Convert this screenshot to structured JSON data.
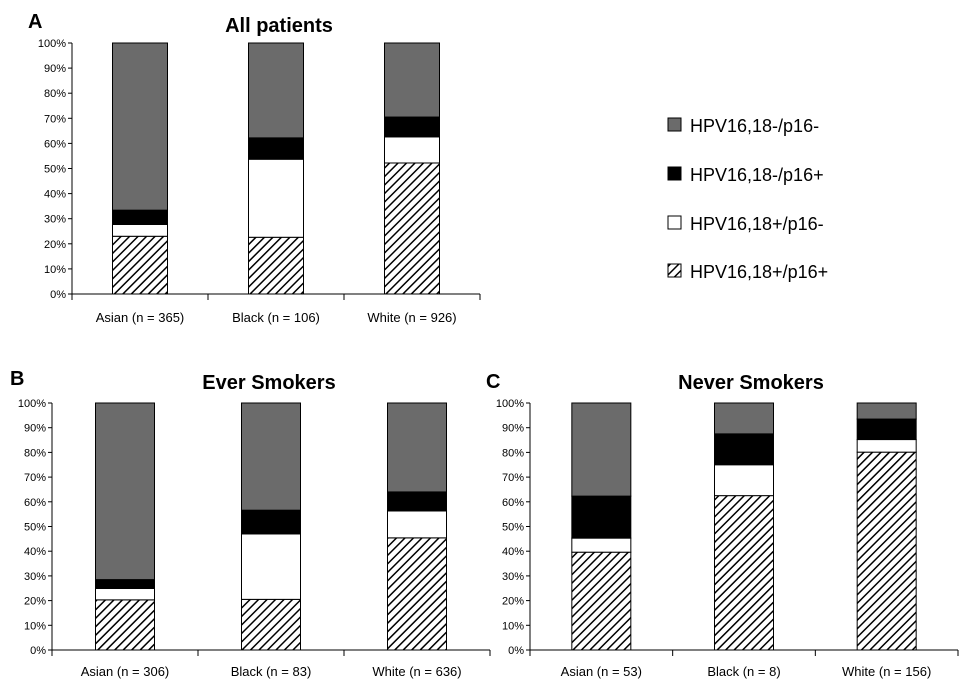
{
  "colors": {
    "neg_neg": "#6b6b6b",
    "neg_pos": "#000000",
    "pos_neg": "#ffffff",
    "pos_pos": "hatch"
  },
  "legend": {
    "items": [
      {
        "key": "neg_neg",
        "label": "HPV16,18-/p16-"
      },
      {
        "key": "neg_pos",
        "label": "HPV16,18-/p16+"
      },
      {
        "key": "pos_neg",
        "label": "HPV16,18+/p16-"
      },
      {
        "key": "pos_pos",
        "label": "HPV16,18+/p16+"
      }
    ]
  },
  "chart_data": [
    {
      "panel": "A",
      "type": "bar",
      "stacked": true,
      "title": "All patients",
      "yticks": [
        "0%",
        "10%",
        "20%",
        "30%",
        "40%",
        "50%",
        "60%",
        "70%",
        "80%",
        "90%",
        "100%"
      ],
      "ylim": [
        0,
        100
      ],
      "categories": [
        "Asian (n = 365)",
        "Black (n = 106)",
        "White (n = 926)"
      ],
      "series": [
        {
          "key": "pos_pos",
          "name": "HPV16,18+/p16+",
          "values": [
            23,
            22.6,
            52.2
          ]
        },
        {
          "key": "pos_neg",
          "name": "HPV16,18+/p16-",
          "values": [
            4.7,
            31.1,
            10.4
          ]
        },
        {
          "key": "neg_pos",
          "name": "HPV16,18-/p16+",
          "values": [
            5.7,
            8.5,
            7.9
          ]
        },
        {
          "key": "neg_neg",
          "name": "HPV16,18-/p16-",
          "values": [
            66.6,
            37.8,
            29.5
          ]
        }
      ]
    },
    {
      "panel": "B",
      "type": "bar",
      "stacked": true,
      "title": "Ever Smokers",
      "yticks": [
        "0%",
        "10%",
        "20%",
        "30%",
        "40%",
        "50%",
        "60%",
        "70%",
        "80%",
        "90%",
        "100%"
      ],
      "ylim": [
        0,
        100
      ],
      "categories": [
        "Asian (n = 306)",
        "Black (n = 83)",
        "White (n = 636)"
      ],
      "series": [
        {
          "key": "pos_pos",
          "name": "HPV16,18+/p16+",
          "values": [
            20.3,
            20.5,
            45.4
          ]
        },
        {
          "key": "pos_neg",
          "name": "HPV16,18+/p16-",
          "values": [
            4.6,
            26.5,
            10.9
          ]
        },
        {
          "key": "neg_pos",
          "name": "HPV16,18-/p16+",
          "values": [
            3.6,
            9.6,
            7.7
          ]
        },
        {
          "key": "neg_neg",
          "name": "HPV16,18-/p16-",
          "values": [
            71.5,
            43.4,
            36.0
          ]
        }
      ]
    },
    {
      "panel": "C",
      "type": "bar",
      "stacked": true,
      "title": "Never Smokers",
      "yticks": [
        "0%",
        "10%",
        "20%",
        "30%",
        "40%",
        "50%",
        "60%",
        "70%",
        "80%",
        "90%",
        "100%"
      ],
      "ylim": [
        0,
        100
      ],
      "categories": [
        "Asian (n = 53)",
        "Black (n = 8)",
        "White (n = 156)"
      ],
      "series": [
        {
          "key": "pos_pos",
          "name": "HPV16,18+/p16+",
          "values": [
            39.6,
            62.5,
            80.1
          ]
        },
        {
          "key": "pos_neg",
          "name": "HPV16,18+/p16-",
          "values": [
            5.7,
            12.5,
            5.1
          ]
        },
        {
          "key": "neg_pos",
          "name": "HPV16,18-/p16+",
          "values": [
            17.0,
            12.5,
            8.3
          ]
        },
        {
          "key": "neg_neg",
          "name": "HPV16,18-/p16-",
          "values": [
            37.7,
            12.5,
            6.5
          ]
        }
      ]
    }
  ]
}
